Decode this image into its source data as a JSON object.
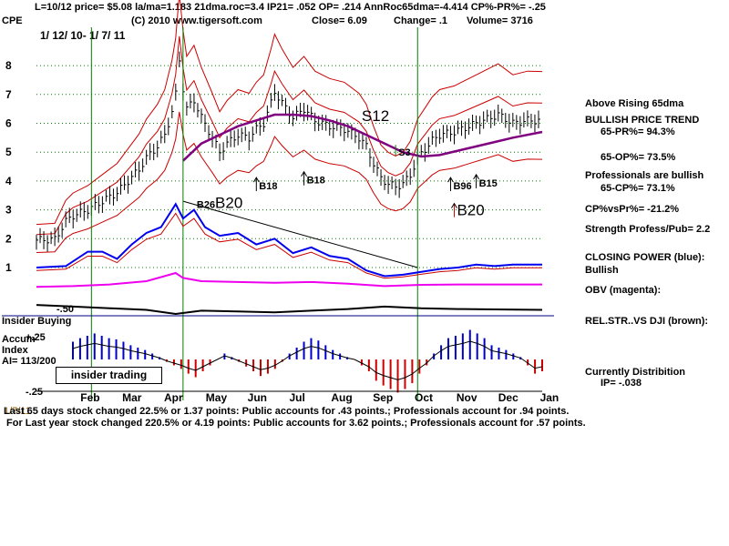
{
  "header": {
    "line1": "L=10/12  price= $5.08  la/ma=1.183 21dma.roc=3.4 IP21= .052 OP= .214 AnnRoc65dma=-4.414 CP%-PR%= -.25",
    "symbol": "CPE",
    "copyright": "(C) 2010 www.tigersoft.com",
    "close_label": "Close=  6.09",
    "change_label": "Change= .1",
    "volume_label": "Volume= 3716",
    "date_range": "1/ 12/ 10- 1/ 7/ 11"
  },
  "right_panel": {
    "line1": "Above Rising 65dma",
    "line2": "BULLISH PRICE TREND",
    "line3": "65-PR%= 94.3%",
    "line4": "65-OP%= 73.5%",
    "line5": "Professionals are bullish",
    "line6": "65-CP%= 73.1%",
    "line7": "CP%vsPr%= -21.2%",
    "line8": "Strength Profess/Pub= 2.2",
    "line9": "CLOSING POWER (blue):",
    "line10": "Bullish",
    "line11": "OBV (magenta):",
    "line12": "REL.STR..VS DJI (brown):",
    "line13": "Currently Distribition",
    "line14": "IP= -.038"
  },
  "left_labels": {
    "insider_buying": "Insider Buying",
    "accum": "Accum",
    "index": "Index",
    "ai": "AI= 113/200",
    "insider_trading": "insider trading",
    "plus25": "+.25",
    "minus25": "-.25",
    "fifty": "-.50"
  },
  "footer": {
    "line1_prefix": "1/7/11",
    "line1": "Last 65 days stock changed  22.5% or  1.37 points:  Public accounts for  .43 points.;  Professionals account for  .94 points.",
    "line2": "For Last year stock changed  220.5% or  4.19 points:  Public accounts for  3.62 points.;  Professionals account for  .57 points."
  },
  "colors": {
    "price_bars": "#000000",
    "bollinger": "#cc0000",
    "ma65": "#800080",
    "closing_power": "#0000ee",
    "obv": "#ee00ee",
    "rel_strength": "#000000",
    "vertical_markers": "#008000",
    "accum_positive": "#0000cc",
    "accum_negative": "#cc0000",
    "grid_dots": "#008000"
  },
  "chart_data": {
    "type": "line",
    "y_axis_ticks": [
      "8",
      "7",
      "6",
      "5",
      "4",
      "3",
      "2",
      "1"
    ],
    "ylim": [
      0.5,
      9
    ],
    "x_ticks": [
      "Feb",
      "Mar",
      "Apr",
      "May",
      "Jun",
      "Jul",
      "Aug",
      "Sep",
      "Oct",
      "Nov",
      "Dec",
      "Jan"
    ],
    "price_series": [
      [
        0,
        1.95
      ],
      [
        5,
        1.98
      ],
      [
        8,
        2.6
      ],
      [
        10,
        2.8
      ],
      [
        14,
        3.0
      ],
      [
        18,
        3.3
      ],
      [
        22,
        3.6
      ],
      [
        25,
        4.0
      ],
      [
        28,
        4.4
      ],
      [
        30,
        4.8
      ],
      [
        33,
        5.2
      ],
      [
        35,
        5.6
      ],
      [
        37,
        6.4
      ],
      [
        38,
        7.0
      ],
      [
        39,
        8.2
      ],
      [
        40,
        7.2
      ],
      [
        41,
        6.5
      ],
      [
        43,
        6.8
      ],
      [
        45,
        6.2
      ],
      [
        48,
        5.5
      ],
      [
        50,
        5.0
      ],
      [
        52,
        5.3
      ],
      [
        55,
        5.6
      ],
      [
        58,
        5.5
      ],
      [
        60,
        5.8
      ],
      [
        62,
        6.0
      ],
      [
        64,
        6.7
      ],
      [
        65,
        7.1
      ],
      [
        67,
        6.7
      ],
      [
        70,
        6.2
      ],
      [
        73,
        6.5
      ],
      [
        76,
        6.1
      ],
      [
        80,
        5.9
      ],
      [
        84,
        5.8
      ],
      [
        88,
        5.5
      ],
      [
        90,
        5.2
      ],
      [
        92,
        4.6
      ],
      [
        94,
        4.1
      ],
      [
        96,
        3.9
      ],
      [
        98,
        3.8
      ],
      [
        100,
        3.9
      ],
      [
        102,
        4.2
      ],
      [
        104,
        4.8
      ],
      [
        106,
        5.1
      ],
      [
        108,
        5.4
      ],
      [
        110,
        5.6
      ],
      [
        114,
        5.7
      ],
      [
        118,
        5.9
      ],
      [
        122,
        6.1
      ],
      [
        126,
        6.3
      ],
      [
        130,
        6.0
      ],
      [
        134,
        6.1
      ],
      [
        138,
        6.09
      ]
    ],
    "ma65": [
      [
        40,
        4.7
      ],
      [
        45,
        5.3
      ],
      [
        50,
        5.6
      ],
      [
        55,
        5.9
      ],
      [
        60,
        6.1
      ],
      [
        65,
        6.3
      ],
      [
        70,
        6.3
      ],
      [
        75,
        6.25
      ],
      [
        80,
        6.1
      ],
      [
        85,
        5.9
      ],
      [
        90,
        5.6
      ],
      [
        95,
        5.3
      ],
      [
        100,
        5.0
      ],
      [
        105,
        4.85
      ],
      [
        110,
        4.9
      ],
      [
        115,
        5.05
      ],
      [
        120,
        5.2
      ],
      [
        125,
        5.35
      ],
      [
        130,
        5.5
      ],
      [
        138,
        5.7
      ]
    ],
    "signals": [
      {
        "label": "B18",
        "x": 60,
        "y": 3.9,
        "dir": "up"
      },
      {
        "label": "B18",
        "x": 73,
        "y": 4.1,
        "dir": "up"
      },
      {
        "label": "S12",
        "x": 88,
        "y": 6.2,
        "dir": "none"
      },
      {
        "label": "S3",
        "x": 98,
        "y": 5.0,
        "dir": "down"
      },
      {
        "label": "B20",
        "x": 48,
        "y": 3.2,
        "dir": "none"
      },
      {
        "label": "B26",
        "x": 43,
        "y": 3.2,
        "dir": "none"
      },
      {
        "label": "B96",
        "x": 113,
        "y": 3.9,
        "dir": "up"
      },
      {
        "label": "B15",
        "x": 120,
        "y": 4.0,
        "dir": "up"
      },
      {
        "label": "B20",
        "x": 114,
        "y": 3.0,
        "dir": "up"
      }
    ],
    "closing_power": [
      [
        0,
        1.0
      ],
      [
        8,
        1.05
      ],
      [
        14,
        1.55
      ],
      [
        18,
        1.55
      ],
      [
        22,
        1.3
      ],
      [
        26,
        1.8
      ],
      [
        30,
        2.2
      ],
      [
        34,
        2.4
      ],
      [
        38,
        3.2
      ],
      [
        40,
        2.7
      ],
      [
        43,
        3.0
      ],
      [
        46,
        2.4
      ],
      [
        50,
        2.1
      ],
      [
        55,
        2.2
      ],
      [
        60,
        1.8
      ],
      [
        65,
        2.0
      ],
      [
        70,
        1.5
      ],
      [
        75,
        1.7
      ],
      [
        80,
        1.4
      ],
      [
        85,
        1.3
      ],
      [
        90,
        0.9
      ],
      [
        95,
        0.7
      ],
      [
        100,
        0.75
      ],
      [
        105,
        0.85
      ],
      [
        110,
        0.95
      ],
      [
        115,
        1.0
      ],
      [
        120,
        1.1
      ],
      [
        125,
        1.05
      ],
      [
        130,
        1.1
      ],
      [
        138,
        1.1
      ]
    ],
    "obv": [
      [
        0,
        0.15
      ],
      [
        10,
        0.2
      ],
      [
        20,
        0.3
      ],
      [
        30,
        0.5
      ],
      [
        38,
        1.0
      ],
      [
        40,
        0.7
      ],
      [
        45,
        0.5
      ],
      [
        55,
        0.45
      ],
      [
        65,
        0.4
      ],
      [
        75,
        0.45
      ],
      [
        85,
        0.35
      ],
      [
        95,
        0.2
      ],
      [
        105,
        0.28
      ],
      [
        115,
        0.3
      ],
      [
        125,
        0.3
      ],
      [
        138,
        0.3
      ]
    ],
    "rel_strength": [
      [
        0,
        -0.55
      ],
      [
        10,
        -0.45
      ],
      [
        20,
        -0.35
      ],
      [
        30,
        -0.25
      ],
      [
        38,
        0.0
      ],
      [
        45,
        -0.2
      ],
      [
        55,
        -0.15
      ],
      [
        65,
        -0.1
      ],
      [
        75,
        -0.2
      ],
      [
        85,
        -0.3
      ],
      [
        95,
        -0.45
      ],
      [
        105,
        -0.35
      ],
      [
        115,
        -0.3
      ],
      [
        125,
        -0.28
      ],
      [
        138,
        -0.25
      ]
    ],
    "accum_index": [
      0.15,
      0.18,
      0.2,
      0.22,
      0.2,
      0.18,
      0.17,
      0.15,
      0.12,
      0.1,
      0.08,
      0.05,
      0.02,
      -0.02,
      -0.05,
      -0.08,
      -0.12,
      -0.15,
      -0.1,
      -0.05,
      0.0,
      0.05,
      0.02,
      -0.02,
      -0.06,
      -0.1,
      -0.14,
      -0.12,
      -0.08,
      -0.02,
      0.05,
      0.1,
      0.15,
      0.18,
      0.16,
      0.12,
      0.08,
      0.05,
      0.02,
      0.0,
      -0.05,
      -0.1,
      -0.18,
      -0.22,
      -0.25,
      -0.28,
      -0.25,
      -0.2,
      -0.12,
      -0.05,
      0.05,
      0.12,
      0.18,
      0.2,
      0.22,
      0.25,
      0.22,
      0.18,
      0.12,
      0.1,
      0.08,
      0.05,
      0.02,
      -0.05,
      -0.12,
      -0.1
    ],
    "vertical_markers_x": [
      15,
      40,
      104
    ]
  }
}
